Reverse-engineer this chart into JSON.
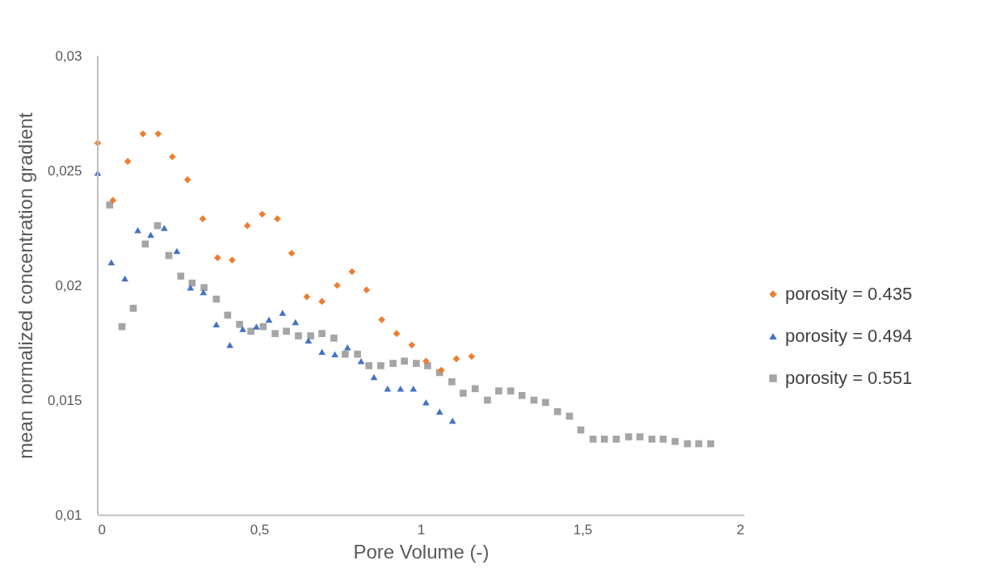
{
  "chart_data": {
    "type": "scatter",
    "xlabel": "Pore Volume (-)",
    "ylabel": "mean normalized concentration gradient",
    "xlim": [
      0,
      2
    ],
    "xticks": [
      0,
      {
        "value": 0.5,
        "label": "0,5"
      },
      1,
      {
        "value": 1.5,
        "label": "1,5"
      },
      2
    ],
    "ylim": [
      0.01,
      0.03
    ],
    "yticks": [
      {
        "value": 0.01,
        "label": "0,01"
      },
      {
        "value": 0.015,
        "label": "0,015"
      },
      {
        "value": 0.02,
        "label": "0,02"
      },
      {
        "value": 0.025,
        "label": "0,025"
      },
      {
        "value": 0.03,
        "label": "0,03"
      }
    ],
    "grid": false,
    "legend": "right",
    "series": [
      {
        "name": "porosity = 0.435",
        "color": "#ed7d31",
        "marker": "diamond",
        "x": [
          0,
          0.047,
          0.093,
          0.14,
          0.187,
          0.231,
          0.278,
          0.325,
          0.371,
          0.416,
          0.463,
          0.509,
          0.556,
          0.6,
          0.647,
          0.694,
          0.741,
          0.787,
          0.832,
          0.879,
          0.925,
          0.972,
          1.016,
          1.063,
          1.11,
          1.157
        ],
        "values": [
          0.0262,
          0.0237,
          0.0254,
          0.0266,
          0.0266,
          0.0256,
          0.0246,
          0.0229,
          0.0212,
          0.0211,
          0.0226,
          0.0231,
          0.0229,
          0.0214,
          0.0195,
          0.0193,
          0.02,
          0.0206,
          0.0198,
          0.0185,
          0.0179,
          0.0174,
          0.0167,
          0.0163,
          0.0168,
          0.0169
        ]
      },
      {
        "name": "porosity = 0.494",
        "color": "#4472c4",
        "marker": "triangle",
        "x": [
          0,
          0.042,
          0.084,
          0.124,
          0.164,
          0.206,
          0.245,
          0.287,
          0.327,
          0.367,
          0.409,
          0.449,
          0.491,
          0.53,
          0.572,
          0.612,
          0.652,
          0.694,
          0.734,
          0.773,
          0.815,
          0.855,
          0.897,
          0.937,
          0.977,
          1.016,
          1.058,
          1.098
        ],
        "values": [
          0.0249,
          0.021,
          0.0203,
          0.0224,
          0.0222,
          0.0225,
          0.0215,
          0.0199,
          0.0197,
          0.0183,
          0.0174,
          0.0181,
          0.0182,
          0.0185,
          0.0188,
          0.0184,
          0.0176,
          0.0171,
          0.017,
          0.0173,
          0.0167,
          0.016,
          0.0155,
          0.0155,
          0.0155,
          0.0149,
          0.0145,
          0.0141
        ]
      },
      {
        "name": "porosity = 0.551",
        "color": "#a5a5a5",
        "marker": "square",
        "x": [
          0.037,
          0.075,
          0.11,
          0.147,
          0.185,
          0.22,
          0.257,
          0.292,
          0.329,
          0.367,
          0.402,
          0.439,
          0.474,
          0.512,
          0.549,
          0.584,
          0.621,
          0.659,
          0.694,
          0.731,
          0.766,
          0.804,
          0.839,
          0.876,
          0.914,
          0.949,
          0.986,
          1.021,
          1.058,
          1.096,
          1.131,
          1.168,
          1.206,
          1.241,
          1.278,
          1.313,
          1.35,
          1.386,
          1.423,
          1.46,
          1.495,
          1.533,
          1.568,
          1.605,
          1.643,
          1.678,
          1.715,
          1.75,
          1.787,
          1.825,
          1.86,
          1.897
        ],
        "values": [
          0.0235,
          0.0182,
          0.019,
          0.0218,
          0.0226,
          0.0213,
          0.0204,
          0.0201,
          0.0199,
          0.0194,
          0.0187,
          0.0183,
          0.018,
          0.0182,
          0.0179,
          0.018,
          0.0178,
          0.0178,
          0.0179,
          0.0177,
          0.017,
          0.017,
          0.0165,
          0.0165,
          0.0166,
          0.0167,
          0.0166,
          0.0165,
          0.0162,
          0.0158,
          0.0153,
          0.0155,
          0.015,
          0.0154,
          0.0154,
          0.0152,
          0.015,
          0.0149,
          0.0145,
          0.0143,
          0.0137,
          0.0133,
          0.0133,
          0.0133,
          0.0134,
          0.0134,
          0.0133,
          0.0133,
          0.0132,
          0.0131,
          0.0131,
          0.0131
        ]
      }
    ]
  }
}
